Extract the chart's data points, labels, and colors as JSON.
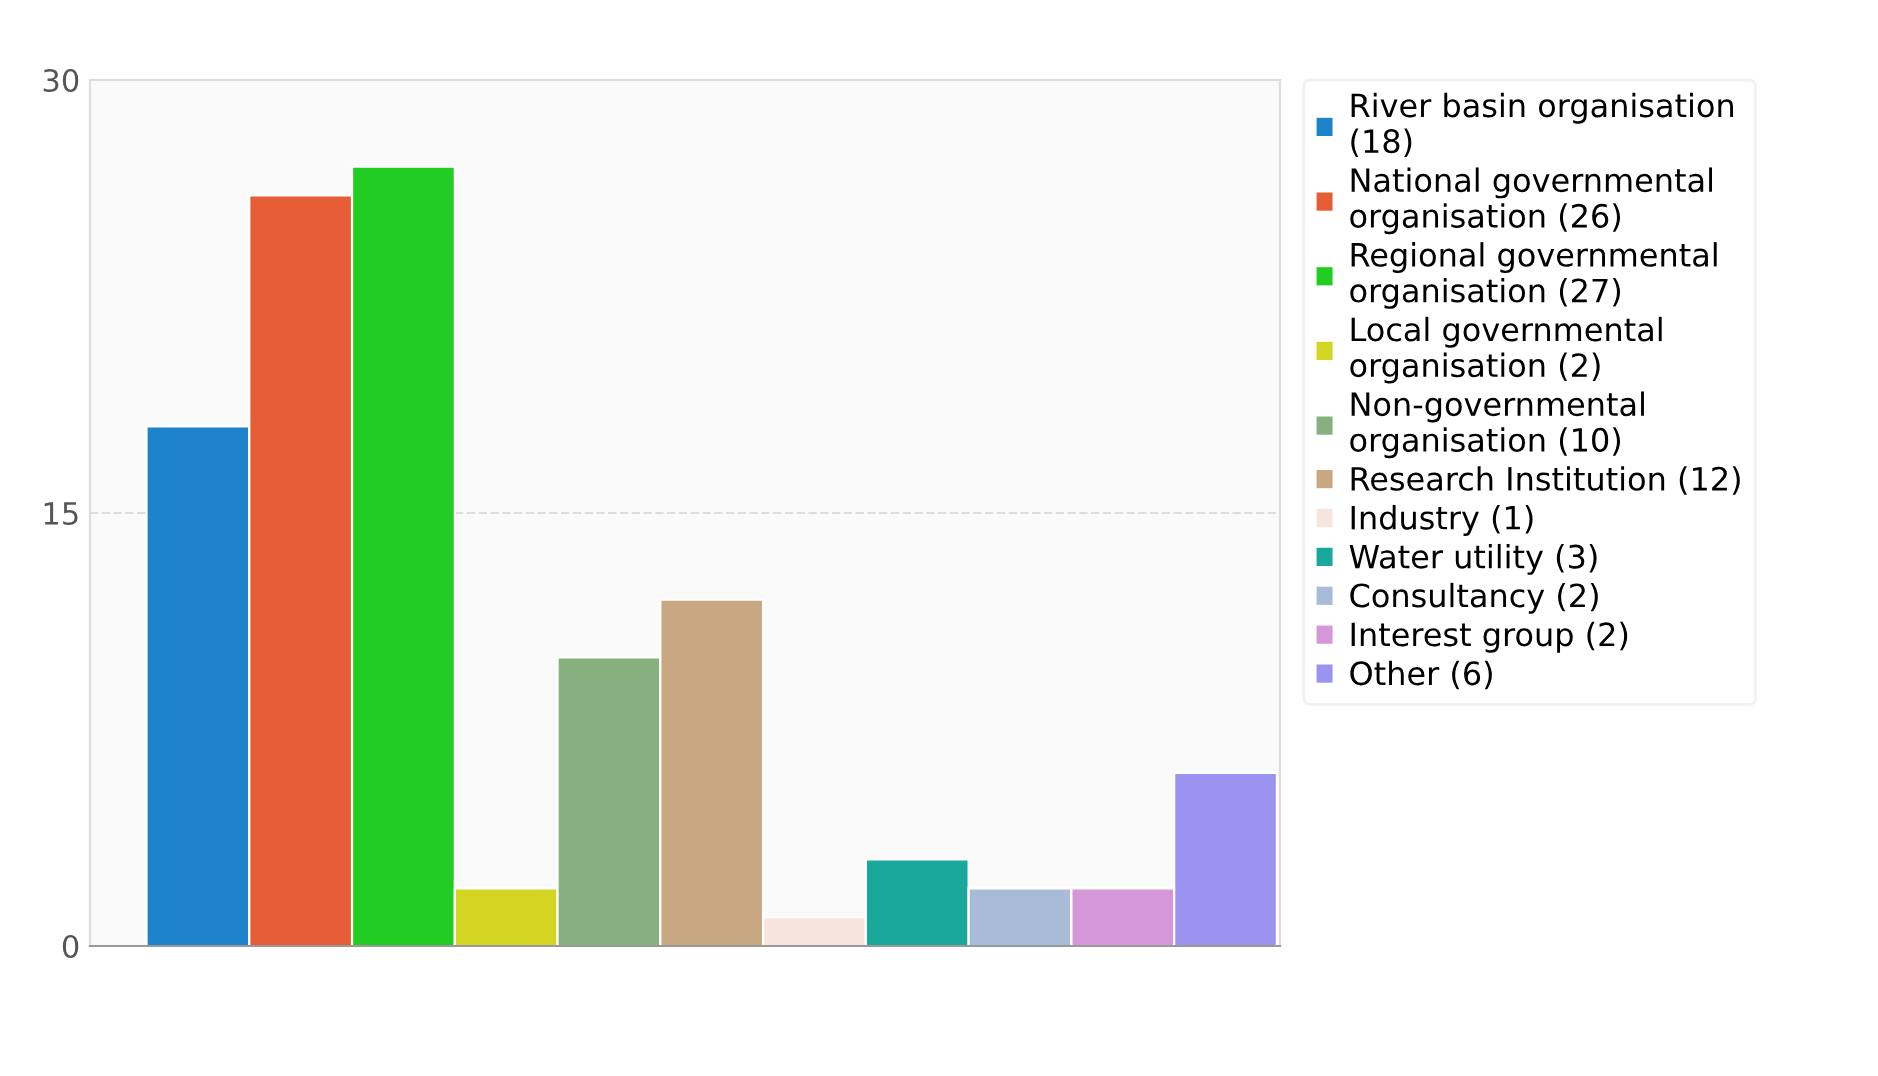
{
  "chart_data": {
    "type": "bar",
    "categories": [
      null,
      null,
      null,
      null,
      null,
      null,
      null,
      null,
      null,
      null,
      null
    ],
    "series": [
      {
        "name": "River basin organisation (18)",
        "color": "#1f83cc",
        "values": [
          18,
          null,
          null,
          null,
          null,
          null,
          null,
          null,
          null,
          null,
          null
        ]
      },
      {
        "name": "National governmental organisation (26)",
        "color": "#e55d34",
        "values": [
          null,
          26,
          null,
          null,
          null,
          null,
          null,
          null,
          null,
          null,
          null
        ]
      },
      {
        "name": "Regional governmental organisation (27)",
        "color": "#22cc22",
        "values": [
          null,
          null,
          27,
          null,
          null,
          null,
          null,
          null,
          null,
          null,
          null
        ]
      },
      {
        "name": "Local governmental organisation (2)",
        "color": "#d4d422",
        "values": [
          null,
          null,
          null,
          2,
          null,
          null,
          null,
          null,
          null,
          null,
          null
        ]
      },
      {
        "name": "Non-governmental organisation (10)",
        "color": "#88b07f",
        "values": [
          null,
          null,
          null,
          null,
          10,
          null,
          null,
          null,
          null,
          null,
          null
        ]
      },
      {
        "name": "Research Institution (12)",
        "color": "#c8a882",
        "values": [
          null,
          null,
          null,
          null,
          null,
          12,
          null,
          null,
          null,
          null,
          null
        ]
      },
      {
        "name": "Industry (1)",
        "color": "#f7e4dc",
        "values": [
          null,
          null,
          null,
          null,
          null,
          null,
          1,
          null,
          null,
          null,
          null
        ]
      },
      {
        "name": "Water utility (3)",
        "color": "#1aa89a",
        "values": [
          null,
          null,
          null,
          null,
          null,
          null,
          null,
          3,
          null,
          null,
          null
        ]
      },
      {
        "name": "Consultancy (2)",
        "color": "#a8bcd8",
        "values": [
          null,
          null,
          null,
          null,
          null,
          null,
          null,
          null,
          2,
          null,
          null
        ]
      },
      {
        "name": "Interest group (2)",
        "color": "#d597d8",
        "values": [
          null,
          null,
          null,
          null,
          null,
          null,
          null,
          null,
          null,
          2,
          null
        ]
      },
      {
        "name": "Other (6)",
        "color": "#9a94f0",
        "values": [
          null,
          null,
          null,
          null,
          null,
          null,
          null,
          null,
          null,
          null,
          6
        ]
      }
    ],
    "ylim": [
      0,
      30
    ],
    "yticks": [
      0,
      15,
      30
    ],
    "grid": "y",
    "legend": "right"
  }
}
